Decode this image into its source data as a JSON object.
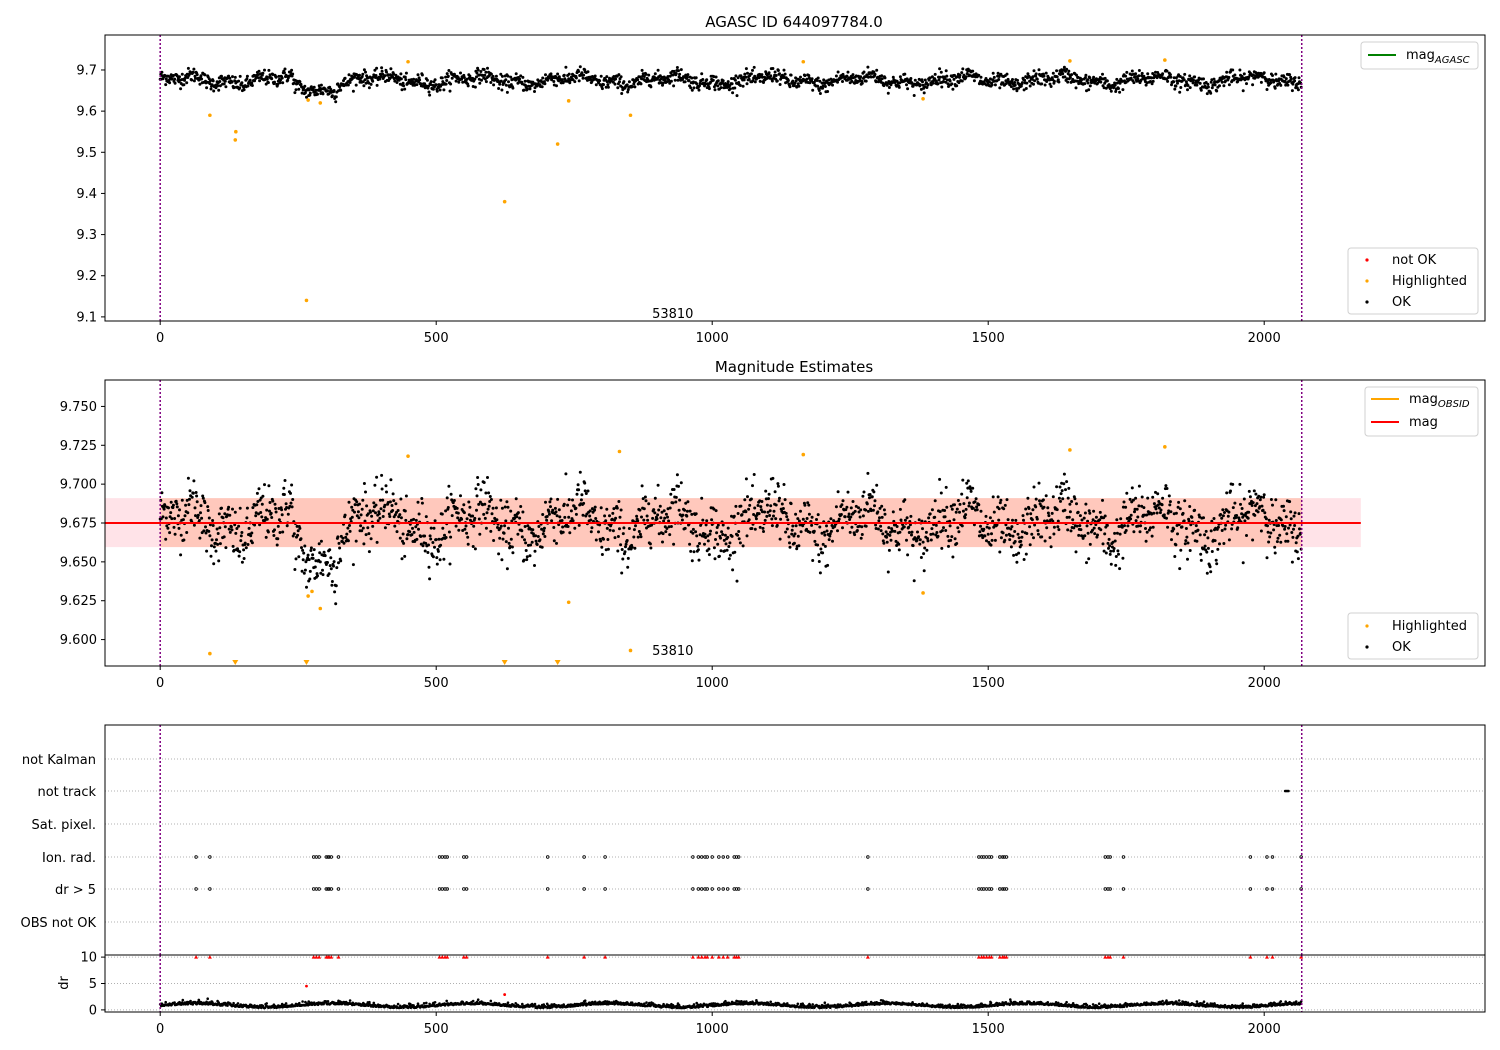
{
  "figure": {
    "colors": {
      "ok": "#000000",
      "highlighted": "#ffa500",
      "not_ok": "#ff0000",
      "mag_agasc_line": "#008000",
      "mag_obsid_line": "#ffa500",
      "mag_line": "#ff0000",
      "band_fill": "#ffc0cb",
      "band_fill_inner": "#ffa07a",
      "obs_boundary": "#800080",
      "grid": "#b0b0b0"
    }
  },
  "chart_data": [
    {
      "type": "scatter",
      "title": "AGASC ID 644097784.0",
      "xlim": [
        -100,
        2400
      ],
      "ylim": [
        9.09,
        9.785
      ],
      "x_ticks": [
        0,
        500,
        1000,
        1500,
        2000
      ],
      "y_ticks": [
        9.1,
        9.2,
        9.3,
        9.4,
        9.5,
        9.6,
        9.7
      ],
      "y_tick_labels": [
        "9.1",
        "9.2",
        "9.3",
        "9.4",
        "9.5",
        "9.6",
        "9.7"
      ],
      "x_tick_labels": [
        "0",
        "500",
        "1000",
        "1500",
        "2000"
      ],
      "obs_boundaries": [
        0,
        2068
      ],
      "obsid_label": {
        "text": "53810",
        "x": 1030,
        "y": 9.107
      },
      "ok_series": {
        "n": 2068,
        "center": 9.675,
        "scatter": 0.012
      },
      "highlighted": [
        {
          "x": 90,
          "y": 9.59
        },
        {
          "x": 136,
          "y": 9.53
        },
        {
          "x": 137,
          "y": 9.55
        },
        {
          "x": 265,
          "y": 9.14
        },
        {
          "x": 268,
          "y": 9.627
        },
        {
          "x": 290,
          "y": 9.62
        },
        {
          "x": 449,
          "y": 9.72
        },
        {
          "x": 624,
          "y": 9.38
        },
        {
          "x": 720,
          "y": 9.52
        },
        {
          "x": 740,
          "y": 9.625
        },
        {
          "x": 852,
          "y": 9.59
        },
        {
          "x": 1165,
          "y": 9.72
        },
        {
          "x": 1382,
          "y": 9.63
        },
        {
          "x": 1648,
          "y": 9.722
        },
        {
          "x": 1820,
          "y": 9.724
        }
      ],
      "legend_lines": [
        {
          "label": "mag",
          "sub": "AGASC",
          "color": "#008000"
        }
      ],
      "legend_points": [
        {
          "label": "not OK",
          "color": "#ff0000"
        },
        {
          "label": "Highlighted",
          "color": "#ffa500"
        },
        {
          "label": "OK",
          "color": "#000000"
        }
      ]
    },
    {
      "type": "scatter",
      "title": "Magnitude Estimates",
      "xlim": [
        -100,
        2400
      ],
      "ylim": [
        9.583,
        9.767
      ],
      "x_ticks": [
        0,
        500,
        1000,
        1500,
        2000
      ],
      "x_tick_labels": [
        "0",
        "500",
        "1000",
        "1500",
        "2000"
      ],
      "y_ticks": [
        9.6,
        9.625,
        9.65,
        9.675,
        9.7,
        9.725,
        9.75
      ],
      "y_tick_labels": [
        "9.600",
        "9.625",
        "9.650",
        "9.675",
        "9.700",
        "9.725",
        "9.750"
      ],
      "obs_boundaries": [
        0,
        2068
      ],
      "obsid_label": {
        "text": "53810",
        "x": 1030,
        "y": 9.5925
      },
      "mag": 9.675,
      "mag_band": [
        9.6595,
        9.691
      ],
      "mag_band_x": [
        -100,
        2175
      ],
      "mag_obsid_band": [
        9.6595,
        9.691
      ],
      "mag_obsid_band_x": [
        0,
        2068
      ],
      "ok_series": {
        "n": 2068,
        "center": 9.675,
        "scatter": 0.012
      },
      "highlighted": [
        {
          "x": 90,
          "y": 9.591
        },
        {
          "x": 268,
          "y": 9.628
        },
        {
          "x": 275,
          "y": 9.631
        },
        {
          "x": 290,
          "y": 9.62
        },
        {
          "x": 449,
          "y": 9.718
        },
        {
          "x": 740,
          "y": 9.624
        },
        {
          "x": 832,
          "y": 9.721
        },
        {
          "x": 852,
          "y": 9.593
        },
        {
          "x": 1165,
          "y": 9.719
        },
        {
          "x": 1382,
          "y": 9.63
        },
        {
          "x": 1648,
          "y": 9.722
        },
        {
          "x": 1820,
          "y": 9.724
        }
      ],
      "off_scale_low": [
        136,
        265,
        624,
        720
      ],
      "legend_lines": [
        {
          "label": "mag",
          "sub": "OBSID",
          "color": "#ffa500"
        },
        {
          "label": "mag",
          "sub": "",
          "color": "#ff0000"
        }
      ],
      "legend_points": [
        {
          "label": "Highlighted",
          "color": "#ffa500"
        },
        {
          "label": "OK",
          "color": "#000000"
        }
      ]
    },
    {
      "type": "scatter",
      "title": "",
      "xlim": [
        -100,
        2400
      ],
      "x_ticks": [
        0,
        500,
        1000,
        1500,
        2000
      ],
      "x_tick_labels": [
        "0",
        "500",
        "1000",
        "1500",
        "2000"
      ],
      "flag_rows": [
        "not Kalman",
        "not track",
        "Sat. pixel.",
        "Ion. rad.",
        "dr > 5",
        "OBS not OK"
      ],
      "obs_boundaries": [
        0,
        2068
      ],
      "not_track_x": [
        2038,
        2040,
        2042,
        2044
      ],
      "flagged_x": [
        65,
        90,
        278,
        283,
        288,
        301,
        304,
        306,
        310,
        323,
        506,
        511,
        516,
        520,
        550,
        555,
        702,
        768,
        806,
        965,
        975,
        981,
        987,
        991,
        1000,
        1012,
        1020,
        1028,
        1040,
        1044,
        1048,
        1282,
        1483,
        1488,
        1492,
        1497,
        1502,
        1506,
        1521,
        1526,
        1529,
        1533,
        1712,
        1717,
        1721,
        1745,
        1975,
        2005,
        2015,
        2067
      ],
      "dr": {
        "ylim": [
          -0.4,
          10.4
        ],
        "y_ticks": [
          0,
          5,
          10
        ],
        "y_tick_labels": [
          "0",
          "5",
          "10"
        ],
        "ylabel": "dr",
        "cap": 10,
        "outliers": [
          {
            "x": 265,
            "y": 4.5
          },
          {
            "x": 624,
            "y": 2.9
          }
        ]
      }
    }
  ]
}
